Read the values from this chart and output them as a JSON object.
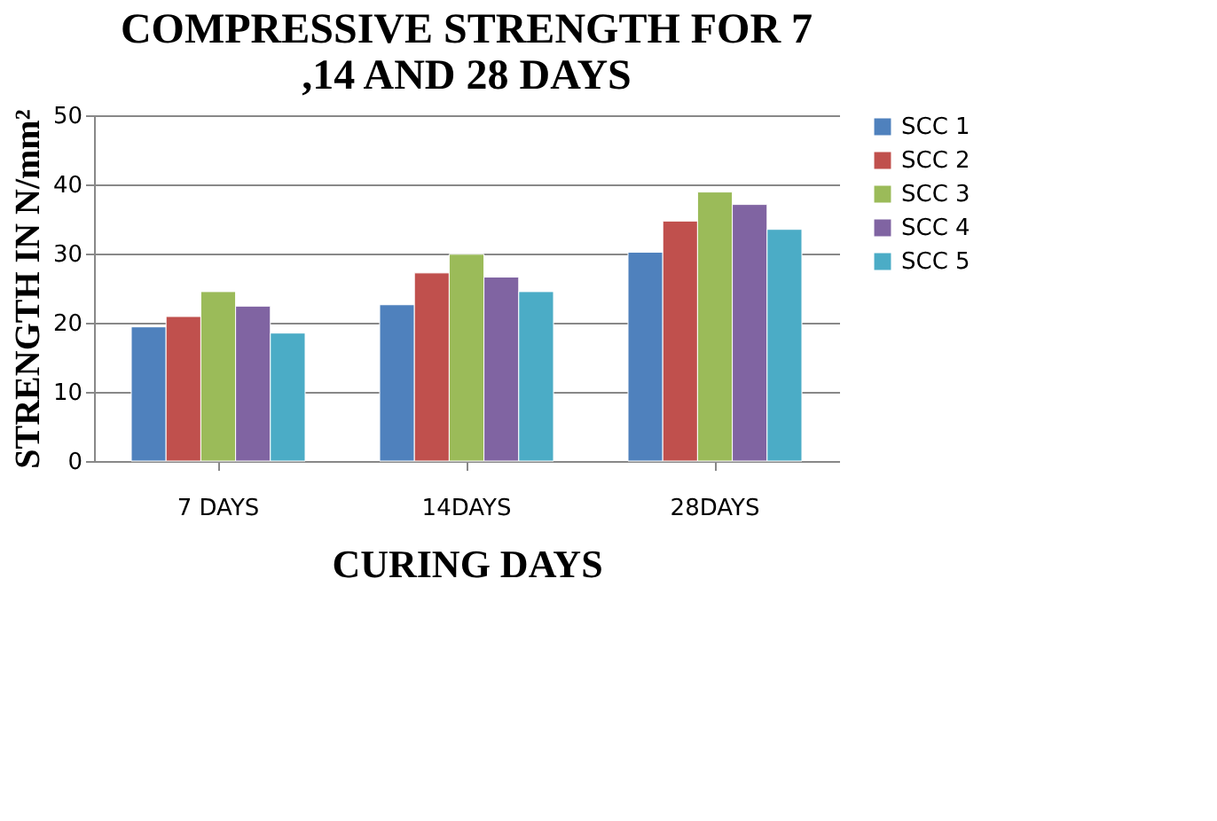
{
  "chart_data": {
    "type": "bar",
    "title": [
      "COMPRESSIVE STRENGTH FOR 7",
      ",14 AND 28 DAYS"
    ],
    "xlabel": "CURING DAYS",
    "ylabel": "STRENGTH IN N/mm²",
    "categories": [
      "7 DAYS",
      "14DAYS",
      "28DAYS"
    ],
    "series": [
      {
        "name": "SCC 1",
        "color": "#4f81bd",
        "values": [
          19.4,
          22.6,
          30.2
        ]
      },
      {
        "name": "SCC 2",
        "color": "#c0504d",
        "values": [
          20.9,
          27.2,
          34.7
        ]
      },
      {
        "name": "SCC 3",
        "color": "#9bbb59",
        "values": [
          24.5,
          29.9,
          38.9
        ]
      },
      {
        "name": "SCC 4",
        "color": "#8064a2",
        "values": [
          22.4,
          26.6,
          37.1
        ]
      },
      {
        "name": "SCC 5",
        "color": "#4bacc6",
        "values": [
          18.5,
          24.5,
          33.5
        ]
      }
    ],
    "ylim": [
      0,
      50
    ],
    "yticks": [
      0,
      10,
      20,
      30,
      40,
      50
    ],
    "grid": "y",
    "legend": "right"
  }
}
